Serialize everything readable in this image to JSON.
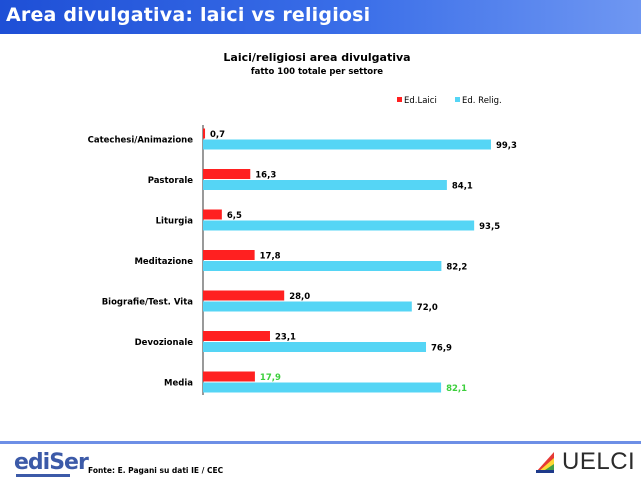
{
  "header": {
    "title": "Area divulgativa: laici vs religiosi"
  },
  "chart_data": {
    "type": "bar",
    "orientation": "horizontal",
    "title": "Laici/religiosi area divulgativa",
    "subtitle": "fatto 100 totale per settore",
    "categories": [
      "Catechesi/Animazione",
      "Pastorale",
      "Liturgia",
      "Meditazione",
      "Biografie/Test. Vita",
      "Devozionale",
      "Media"
    ],
    "series": [
      {
        "name": "Ed.Laici",
        "color": "#ff2020",
        "values": [
          0.7,
          16.3,
          6.5,
          17.8,
          28.0,
          23.1,
          17.9
        ],
        "labels": [
          "0,7",
          "16,3",
          "6,5",
          "17,8",
          "28,0",
          "23,1",
          "17,9"
        ]
      },
      {
        "name": "Ed. Relig.",
        "color": "#55d5f5",
        "values": [
          99.3,
          84.1,
          93.5,
          82.2,
          72.0,
          76.9,
          82.1
        ],
        "labels": [
          "99,3",
          "84,1",
          "93,5",
          "82,2",
          "72,0",
          "76,9",
          "82,1"
        ]
      }
    ],
    "highlight_label_color": "#3ccf3c",
    "highlight_category": "Media",
    "xlim": [
      0,
      100
    ],
    "legend_position": "top-right",
    "grid": false
  },
  "footer": {
    "source": "Fonte: E. Pagani su dati IE / CEC",
    "logo_left": "ediSer",
    "logo_right": "UELCI",
    "logo_left_icon": "ediser-logo",
    "logo_right_icon": "uelci-logo"
  }
}
